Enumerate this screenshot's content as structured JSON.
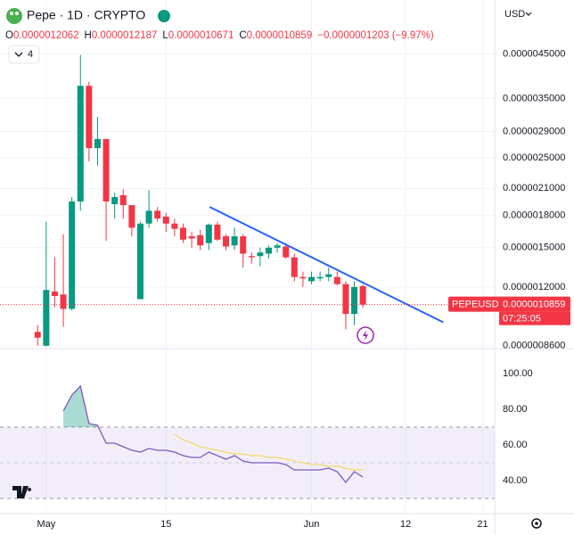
{
  "header": {
    "symbol": "Pepe · 1D · CRYPTO",
    "ohlc": [
      [
        "O",
        "0.0000012062"
      ],
      [
        "H",
        "0.0000012187"
      ],
      [
        "L",
        "0.0000010671"
      ],
      [
        "C",
        "0.0000010859"
      ]
    ],
    "change": "−0.0000001203 (−9.97%)"
  },
  "ui": {
    "currency": "USD",
    "indicator_count": 4
  },
  "chart_data": [
    {
      "type": "candlestick",
      "log": true,
      "grid": true,
      "up_color": "#089981",
      "down_color": "#f23645",
      "x": [
        0,
        1,
        2,
        3,
        4,
        5,
        6,
        7,
        8,
        9,
        10,
        11,
        12,
        13,
        14,
        15,
        16,
        17,
        18,
        19,
        20,
        21,
        22,
        23,
        24,
        25,
        26,
        27,
        28,
        29,
        30,
        31,
        32,
        33,
        34,
        35,
        36,
        37,
        38
      ],
      "open": [
        9.3e-07,
        8.6e-07,
        1.17e-06,
        1.15e-06,
        1.06e-06,
        1.95e-06,
        3.76e-06,
        2.64e-06,
        2.78e-06,
        1.92e-06,
        2.02e-06,
        1.91e-06,
        1.12e-06,
        1.72e-06,
        1.85e-06,
        1.79e-06,
        1.72e-06,
        1.68e-06,
        1.6e-06,
        1.61e-06,
        1.54e-06,
        1.71e-06,
        1.6e-06,
        1.52e-06,
        1.6e-06,
        1.43e-06,
        1.43e-06,
        1.45e-06,
        1.5e-06,
        1.51e-06,
        1.42e-06,
        1.27e-06,
        1.24e-06,
        1.26e-06,
        1.27e-06,
        1.27e-06,
        1.22e-06,
        1.03e-06,
        1.2062e-06
      ],
      "high": [
        9.67e-07,
        1.74e-06,
        1.42e-06,
        1.62e-06,
        2e-06,
        4.48e-06,
        3.85e-06,
        3.15e-06,
        2.78e-06,
        2.05e-06,
        2.09e-06,
        1.91e-06,
        1.74e-06,
        2.08e-06,
        1.89e-06,
        1.83e-06,
        1.77e-06,
        1.72e-06,
        1.64e-06,
        1.66e-06,
        1.72e-06,
        1.74e-06,
        1.62e-06,
        1.68e-06,
        1.62e-06,
        1.46e-06,
        1.5e-06,
        1.52e-06,
        1.54e-06,
        1.54e-06,
        1.45e-06,
        1.31e-06,
        1.31e-06,
        1.31e-06,
        1.34e-06,
        1.31e-06,
        1.24e-06,
        1.24e-06,
        1.2187e-06
      ],
      "low": [
        8.6e-07,
        8.57e-07,
        1.07e-06,
        9.57e-07,
        1.05e-06,
        1.85e-06,
        2.45e-06,
        2.39e-06,
        1.56e-06,
        1.77e-06,
        1.77e-06,
        1.6e-06,
        1.12e-06,
        1.68e-06,
        1.74e-06,
        1.64e-06,
        1.6e-06,
        1.54e-06,
        1.5e-06,
        1.48e-06,
        1.48e-06,
        1.56e-06,
        1.48e-06,
        1.48e-06,
        1.34e-06,
        1.37e-06,
        1.35e-06,
        1.41e-06,
        1.46e-06,
        1.41e-06,
        1.24e-06,
        1.2e-06,
        1.22e-06,
        1.24e-06,
        1.24e-06,
        1.21e-06,
        9.43e-07,
        9.67e-07,
        1.0671e-06
      ],
      "close": [
        9e-07,
        1.18e-06,
        1.14e-06,
        1.06e-06,
        1.95e-06,
        3.76e-06,
        2.64e-06,
        2.78e-06,
        1.95e-06,
        2e-06,
        1.91e-06,
        1.68e-06,
        1.72e-06,
        1.85e-06,
        1.77e-06,
        1.72e-06,
        1.67e-06,
        1.57e-06,
        1.58e-06,
        1.52e-06,
        1.71e-06,
        1.57e-06,
        1.51e-06,
        1.6e-06,
        1.45e-06,
        1.42e-06,
        1.46e-06,
        1.5e-06,
        1.52e-06,
        1.42e-06,
        1.27e-06,
        1.26e-06,
        1.27e-06,
        1.27e-06,
        1.29e-06,
        1.22e-06,
        1.03e-06,
        1.2e-06,
        1.0859e-06
      ],
      "xlim": [
        -4.4,
        53.4
      ],
      "ylim": [
        8.5e-07,
        4.8e-06
      ],
      "yticks": [
        {
          "value": 4.5e-06,
          "label": "0.0000045000"
        },
        {
          "value": 3.5e-06,
          "label": "0.0000035000"
        },
        {
          "value": 2.9e-06,
          "label": "0.0000029000"
        },
        {
          "value": 2.5e-06,
          "label": "0.0000025000"
        },
        {
          "value": 2.1e-06,
          "label": "0.0000021000"
        },
        {
          "value": 1.8e-06,
          "label": "0.0000018000"
        },
        {
          "value": 1.5e-06,
          "label": "0.0000015000"
        },
        {
          "value": 1.2e-06,
          "label": "0.0000012000"
        },
        {
          "value": 8.6e-07,
          "label": "0.0000008600"
        }
      ],
      "trendline": {
        "color": "#2962ff",
        "x": [
          20.1,
          47.4
        ],
        "values": [
          1.89e-06,
          9.82e-07
        ]
      },
      "price_label": {
        "symbol": "PEPEUSD",
        "value": 1.0859e-06,
        "label": "0.0000010859",
        "countdown": "07:25:05",
        "color": "#f23645"
      }
    },
    {
      "type": "line",
      "grid": true,
      "x": [
        0,
        1,
        2,
        3,
        4,
        5,
        6,
        7,
        8,
        9,
        10,
        11,
        12,
        13,
        14,
        15,
        16,
        17,
        18,
        19,
        20,
        21,
        22,
        23,
        24,
        25,
        26,
        27,
        28,
        29,
        30,
        31,
        32,
        33,
        34,
        35,
        36,
        37,
        38
      ],
      "series": [
        {
          "color": "#7e57c2",
          "values": [
            null,
            null,
            null,
            79,
            88,
            93,
            72,
            71,
            61,
            61,
            59,
            57,
            56,
            58,
            57,
            57,
            56,
            54,
            53,
            53,
            56,
            54,
            52,
            54,
            51,
            50,
            50,
            50,
            50,
            49,
            46,
            46,
            46,
            46,
            47,
            45,
            39,
            45,
            42
          ]
        },
        {
          "color": "#f5d76e",
          "values": [
            null,
            null,
            null,
            null,
            null,
            null,
            null,
            null,
            null,
            null,
            null,
            null,
            null,
            null,
            null,
            null,
            66,
            63,
            61,
            59,
            58,
            57,
            56,
            55,
            55,
            54,
            54,
            53,
            53,
            52,
            51,
            50,
            49,
            49,
            48,
            48,
            47,
            46,
            46
          ]
        }
      ],
      "bands": [
        30,
        50,
        70
      ],
      "overbought_color": "#089981",
      "xlim": [
        -4.4,
        53.4
      ],
      "ylim": [
        22,
        113.5
      ],
      "yticks": [
        {
          "value": 100,
          "label": "100.00"
        },
        {
          "value": 80,
          "label": "80.00"
        },
        {
          "value": 60,
          "label": "60.00"
        },
        {
          "value": 40,
          "label": "40.00"
        }
      ],
      "xticks": [
        {
          "value": 1,
          "label": "May"
        },
        15,
        {
          "value": 32,
          "label": "Jun"
        },
        {
          "value": 43,
          "label": "12"
        },
        {
          "value": 52,
          "label": "21"
        }
      ]
    }
  ]
}
